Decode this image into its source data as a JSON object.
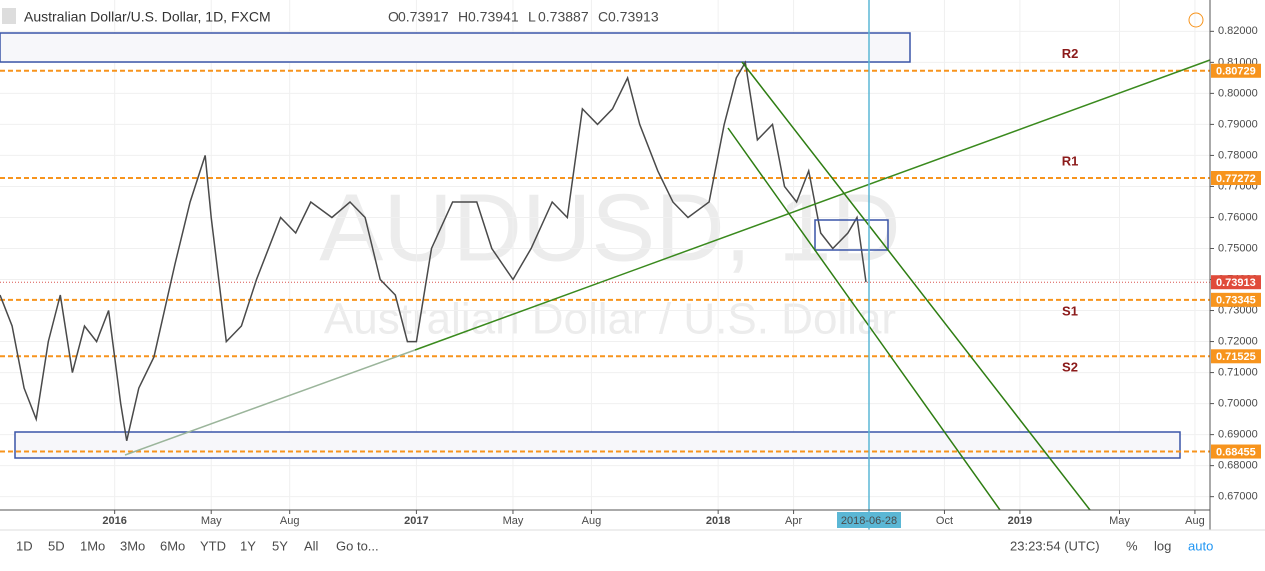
{
  "chart_data": {
    "type": "line",
    "title": "Australian Dollar/U.S. Dollar, 1D, FXCM",
    "ohlc": [
      {
        "label": "O",
        "value": 0.73917
      },
      {
        "label": "H",
        "value": 0.73941
      },
      {
        "label": "L",
        "value": 0.73887
      },
      {
        "label": "C",
        "value": 0.73913
      }
    ],
    "watermark": "AUDUSD, 1D",
    "watermark_sub": "Australian Dollar / U.S. Dollar",
    "color": "#4a4a4a",
    "x": [
      2015.62,
      2015.66,
      2015.7,
      2015.74,
      2015.78,
      2015.82,
      2015.86,
      2015.9,
      2015.94,
      2015.98,
      2016.02,
      2016.04,
      2016.08,
      2016.13,
      2016.2,
      2016.25,
      2016.3,
      2016.32,
      2016.37,
      2016.42,
      2016.47,
      2016.55,
      2016.6,
      2016.65,
      2016.72,
      2016.78,
      2016.83,
      2016.88,
      2016.93,
      2016.97,
      2017.0,
      2017.05,
      2017.12,
      2017.2,
      2017.25,
      2017.32,
      2017.38,
      2017.45,
      2017.5,
      2017.55,
      2017.6,
      2017.65,
      2017.7,
      2017.74,
      2017.8,
      2017.85,
      2017.9,
      2017.97,
      2018.02,
      2018.06,
      2018.09,
      2018.13,
      2018.18,
      2018.22,
      2018.26,
      2018.3,
      2018.34,
      2018.38,
      2018.43,
      2018.46,
      2018.49
    ],
    "values": [
      0.735,
      0.725,
      0.705,
      0.695,
      0.72,
      0.735,
      0.71,
      0.725,
      0.72,
      0.73,
      0.7,
      0.688,
      0.705,
      0.715,
      0.745,
      0.765,
      0.78,
      0.76,
      0.72,
      0.725,
      0.74,
      0.76,
      0.755,
      0.765,
      0.76,
      0.765,
      0.76,
      0.74,
      0.735,
      0.72,
      0.72,
      0.75,
      0.765,
      0.765,
      0.75,
      0.74,
      0.75,
      0.765,
      0.76,
      0.795,
      0.79,
      0.795,
      0.805,
      0.79,
      0.775,
      0.765,
      0.76,
      0.765,
      0.79,
      0.805,
      0.81,
      0.785,
      0.79,
      0.77,
      0.765,
      0.775,
      0.755,
      0.75,
      0.755,
      0.76,
      0.73913
    ],
    "xlim": [
      2015.62,
      2019.63
    ],
    "ylim": [
      0.6657,
      0.8301
    ],
    "xticks": [
      {
        "value": 2016.0,
        "label": "2016"
      },
      {
        "value": 2016.32,
        "label": "May"
      },
      {
        "value": 2016.58,
        "label": "Aug"
      },
      {
        "value": 2017.0,
        "label": "2017"
      },
      {
        "value": 2017.32,
        "label": "May"
      },
      {
        "value": 2017.58,
        "label": "Aug"
      },
      {
        "value": 2018.0,
        "label": "2018"
      },
      {
        "value": 2018.25,
        "label": "Apr"
      },
      {
        "value": 2018.75,
        "label": "Oct"
      },
      {
        "value": 2019.0,
        "label": "2019"
      },
      {
        "value": 2019.33,
        "label": "May"
      },
      {
        "value": 2019.58,
        "label": "Aug"
      }
    ],
    "yticks": [
      {
        "value": 0.67,
        "label": "0.67000"
      },
      {
        "value": 0.68,
        "label": "0.68000"
      },
      {
        "value": 0.69,
        "label": "0.69000"
      },
      {
        "value": 0.7,
        "label": "0.70000"
      },
      {
        "value": 0.71,
        "label": "0.71000"
      },
      {
        "value": 0.72,
        "label": "0.72000"
      },
      {
        "value": 0.73,
        "label": "0.73000"
      },
      {
        "value": 0.74,
        "label": "0.74000"
      },
      {
        "value": 0.75,
        "label": "0.75000"
      },
      {
        "value": 0.76,
        "label": "0.76000"
      },
      {
        "value": 0.77,
        "label": "0.77000"
      },
      {
        "value": 0.78,
        "label": "0.78000"
      },
      {
        "value": 0.79,
        "label": "0.79000"
      },
      {
        "value": 0.8,
        "label": "0.80000"
      },
      {
        "value": 0.81,
        "label": "0.81000"
      },
      {
        "value": 0.82,
        "label": "0.82000"
      }
    ],
    "levels": [
      {
        "name": "R2",
        "value": 0.80729
      },
      {
        "name": "R1",
        "value": 0.77272
      },
      {
        "name": "S1",
        "value": 0.73345
      },
      {
        "name": "S2",
        "value": 0.71525
      },
      {
        "value": 0.68455
      }
    ],
    "last_price": 0.73913,
    "cursor_date": "2018-06-28",
    "toolbar": {
      "ranges": [
        "1D",
        "5D",
        "1Mo",
        "3Mo",
        "6Mo",
        "YTD",
        "1Y",
        "5Y",
        "All"
      ],
      "goto": "Go to...",
      "clock": "23:23:54 (UTC)",
      "percent": "%",
      "log": "log",
      "auto": "auto"
    }
  }
}
